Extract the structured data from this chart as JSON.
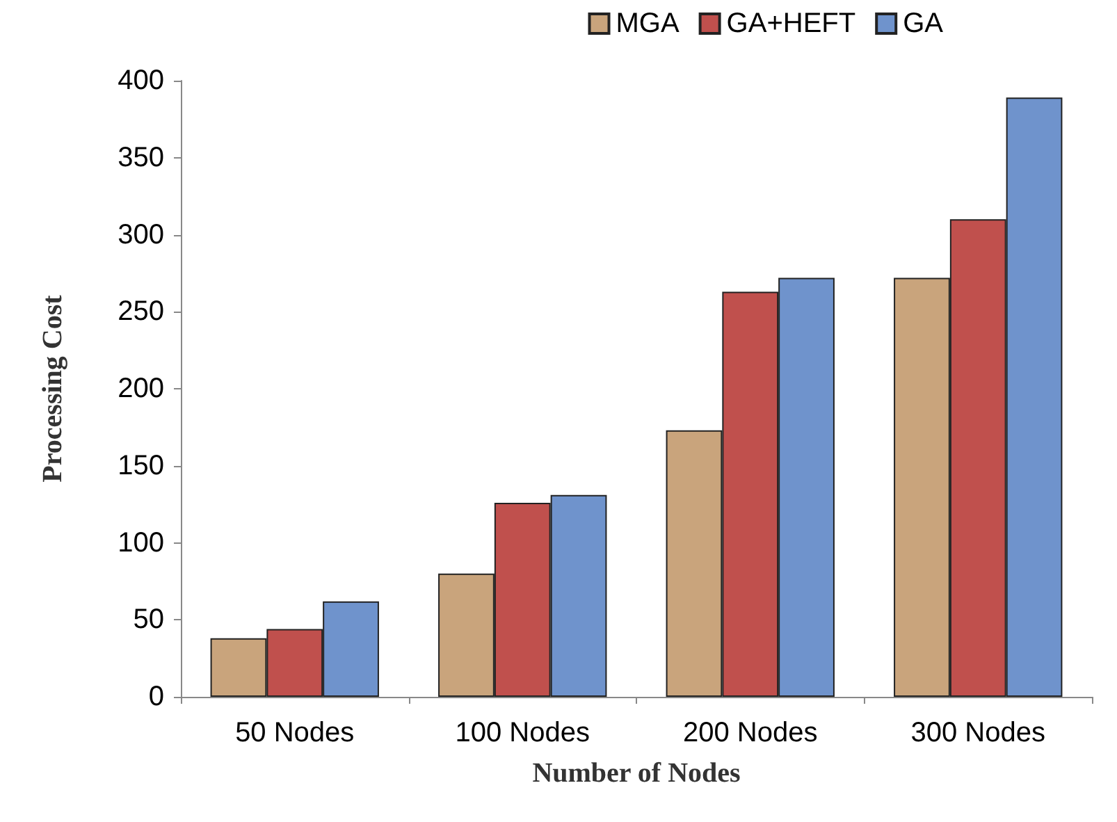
{
  "chart_data": {
    "type": "bar",
    "xlabel": "Number of Nodes",
    "ylabel": "Processing Cost",
    "categories": [
      "50 Nodes",
      "100 Nodes",
      "200 Nodes",
      "300 Nodes"
    ],
    "series": [
      {
        "name": "MGA",
        "color": "#c9a47c",
        "values": [
          38,
          80,
          173,
          272
        ]
      },
      {
        "name": "GA+HEFT",
        "color": "#c0504d",
        "values": [
          44,
          126,
          263,
          310
        ]
      },
      {
        "name": "GA",
        "color": "#6f93cc",
        "values": [
          62,
          131,
          272,
          389
        ]
      }
    ],
    "ylim": [
      0,
      400
    ],
    "yticks": [
      0,
      50,
      100,
      150,
      200,
      250,
      300,
      350,
      400
    ],
    "grid": false,
    "legend": "top right"
  }
}
